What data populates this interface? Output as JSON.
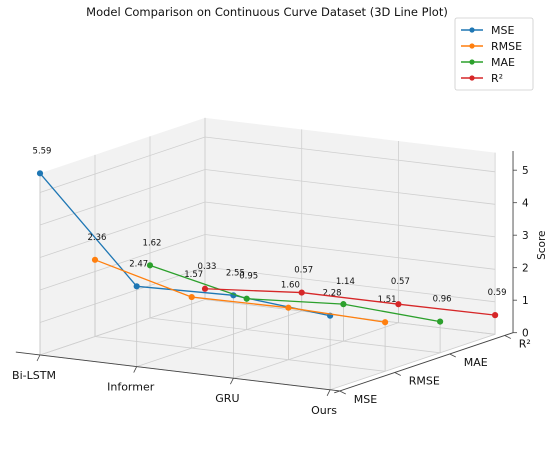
{
  "chart_data": {
    "type": "line",
    "subtype": "3d",
    "title": "Model Comparison on Continuous Curve Dataset (3D Line Plot)",
    "zlabel": "Score",
    "zlim": [
      0,
      5.59
    ],
    "z_ticks": [
      "0",
      "1",
      "2",
      "3",
      "4",
      "5"
    ],
    "x_ticks": [
      "Bi-LSTM",
      "Informer",
      "GRU",
      "Ours"
    ],
    "y_ticks": [
      "MSE",
      "RMSE",
      "MAE",
      "R²"
    ],
    "legend_placement": "top-right",
    "grid": true,
    "series": [
      {
        "name": "MSE",
        "color": "#1f77b4",
        "values": [
          5.59,
          2.47,
          2.55,
          2.28
        ],
        "labels": [
          "5.59",
          "2.47",
          "2.55",
          "2.28"
        ]
      },
      {
        "name": "RMSE",
        "color": "#ff7f0e",
        "values": [
          2.36,
          1.57,
          1.6,
          1.51
        ],
        "labels": [
          "2.36",
          "1.57",
          "1.60",
          "1.51"
        ]
      },
      {
        "name": "MAE",
        "color": "#2ca02c",
        "values": [
          1.62,
          0.95,
          1.14,
          0.96
        ],
        "labels": [
          "1.62",
          "0.95",
          "1.14",
          "0.96"
        ]
      },
      {
        "name": "R²",
        "color": "#d62728",
        "values": [
          0.33,
          0.57,
          0.57,
          0.59
        ],
        "labels": [
          "0.33",
          "0.57",
          "0.57",
          "0.59"
        ]
      }
    ]
  }
}
